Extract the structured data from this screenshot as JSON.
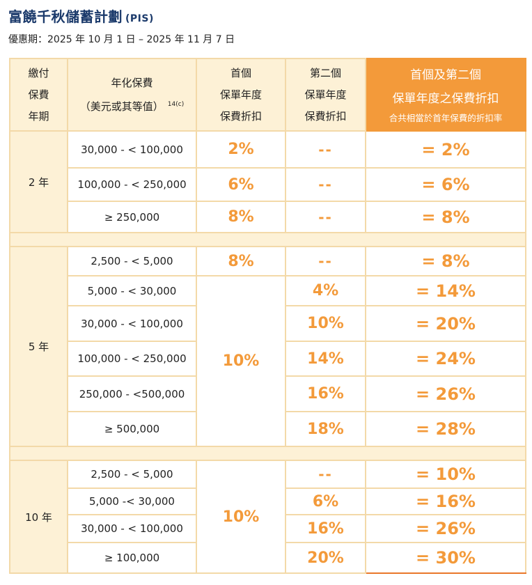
{
  "header": {
    "title": "富饒千秋儲蓄計劃",
    "code": "(PIS)",
    "period": "優惠期：2025 年 10 月 1 日 – 2025 年 11 月 7 日"
  },
  "table": {
    "col1": [
      "繳付",
      "保費",
      "年期"
    ],
    "col2_line1": "年化保費",
    "col2_line2": "（美元或其等值）",
    "col2_note": "14(c)",
    "col3": [
      "首個",
      "保單年度",
      "保費折扣"
    ],
    "col4": [
      "第二個",
      "保單年度",
      "保費折扣"
    ],
    "col5_line1": "首個及第二個",
    "col5_line2": "保單年度之保費折扣",
    "col5_line3": "合共相當於首年保費的折扣率",
    "groups": [
      {
        "term": "2 年",
        "rows": [
          {
            "range": "30,000 - < 100,000",
            "first": "2%",
            "second": "--",
            "total": "= 2%"
          },
          {
            "range": "100,000 - < 250,000",
            "first": "6%",
            "second": "--",
            "total": "= 6%"
          },
          {
            "range": "≥ 250,000",
            "first": "8%",
            "second": "--",
            "total": "= 8%"
          }
        ]
      },
      {
        "term": "5 年",
        "rows": [
          {
            "range": "2,500 - < 5,000",
            "first": "8%",
            "second": "--",
            "total": "= 8%"
          },
          {
            "range": "5,000 - < 30,000",
            "first": "10%",
            "second": "4%",
            "total": "= 14%"
          },
          {
            "range": "30,000 - < 100,000",
            "first": "10%",
            "second": "10%",
            "total": "= 20%"
          },
          {
            "range": "100,000 - < 250,000",
            "first": "10%",
            "second": "14%",
            "total": "= 24%"
          },
          {
            "range": "250,000 - <500,000",
            "first": "10%",
            "second": "16%",
            "total": "= 26%"
          },
          {
            "range": "≥ 500,000",
            "first": "10%",
            "second": "18%",
            "total": "= 28%"
          }
        ]
      },
      {
        "term": "10 年",
        "rows": [
          {
            "range": "2,500 - < 5,000",
            "first": "10%",
            "second": "--",
            "total": "= 10%"
          },
          {
            "range": "5,000 -< 30,000",
            "first": "10%",
            "second": "6%",
            "total": "= 16%"
          },
          {
            "range": "30,000 - < 100,000",
            "first": "10%",
            "second": "16%",
            "total": "= 26%"
          },
          {
            "range": "≥ 100,000",
            "first": "10%",
            "second": "20%",
            "total": "= 30%"
          }
        ]
      }
    ]
  }
}
